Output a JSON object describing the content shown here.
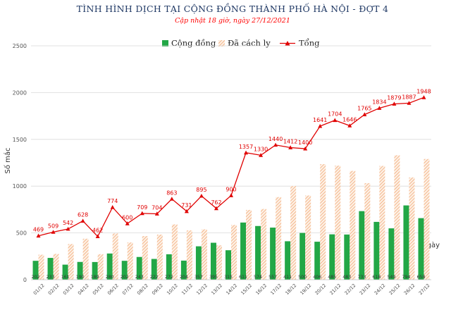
{
  "chart_data": {
    "type": "bar",
    "title": "TÌNH HÌNH DỊCH TẠI CỘNG ĐỒNG THÀNH PHỐ HÀ NỘI - ĐỢT 4",
    "subtitle": "Cập nhật 18 giờ, ngày 27/12/2021",
    "ylabel": "Số mắc",
    "xlabel": "Ngày",
    "ylim": [
      0,
      2500
    ],
    "yticks": [
      0,
      500,
      1000,
      1500,
      2000,
      2500
    ],
    "grid": true,
    "legend_position": "top",
    "categories": [
      "01/12",
      "02/12",
      "03/12",
      "04/12",
      "05/12",
      "06/12",
      "07/12",
      "08/12",
      "09/12",
      "10/12",
      "11/12",
      "12/12",
      "13/12",
      "14/12",
      "15/12",
      "16/12",
      "17/12",
      "18/12",
      "19/12",
      "20/12",
      "21/12",
      "22/12",
      "23/12",
      "24/12",
      "25/12",
      "26/12",
      "27/12"
    ],
    "series": [
      {
        "name": "Cộng đồng",
        "kind": "bar",
        "color": "#22a746",
        "values": [
          202,
          233,
          161,
          190,
          189,
          280,
          202,
          243,
          222,
          272,
          204,
          357,
          395,
          315,
          611,
          574,
          557,
          411,
          500,
          406,
          485,
          483,
          733,
          618,
          549,
          794,
          658
        ]
      },
      {
        "name": "Đã cách ly",
        "kind": "bar-hatched",
        "color": "#f4b183",
        "values": [
          267,
          276,
          381,
          438,
          273,
          494,
          398,
          466,
          482,
          591,
          527,
          538,
          367,
          585,
          746,
          756,
          883,
          1001,
          900,
          1235,
          1219,
          1163,
          1032,
          1216,
          1330,
          1093,
          1290
        ]
      },
      {
        "name": "Tổng",
        "kind": "line",
        "color": "#e00000",
        "values": [
          469,
          509,
          542,
          628,
          462,
          774,
          600,
          709,
          704,
          863,
          731,
          895,
          762,
          900,
          1357,
          1330,
          1440,
          1412,
          1400,
          1641,
          1704,
          1646,
          1765,
          1834,
          1879,
          1887,
          1948
        ]
      }
    ]
  }
}
